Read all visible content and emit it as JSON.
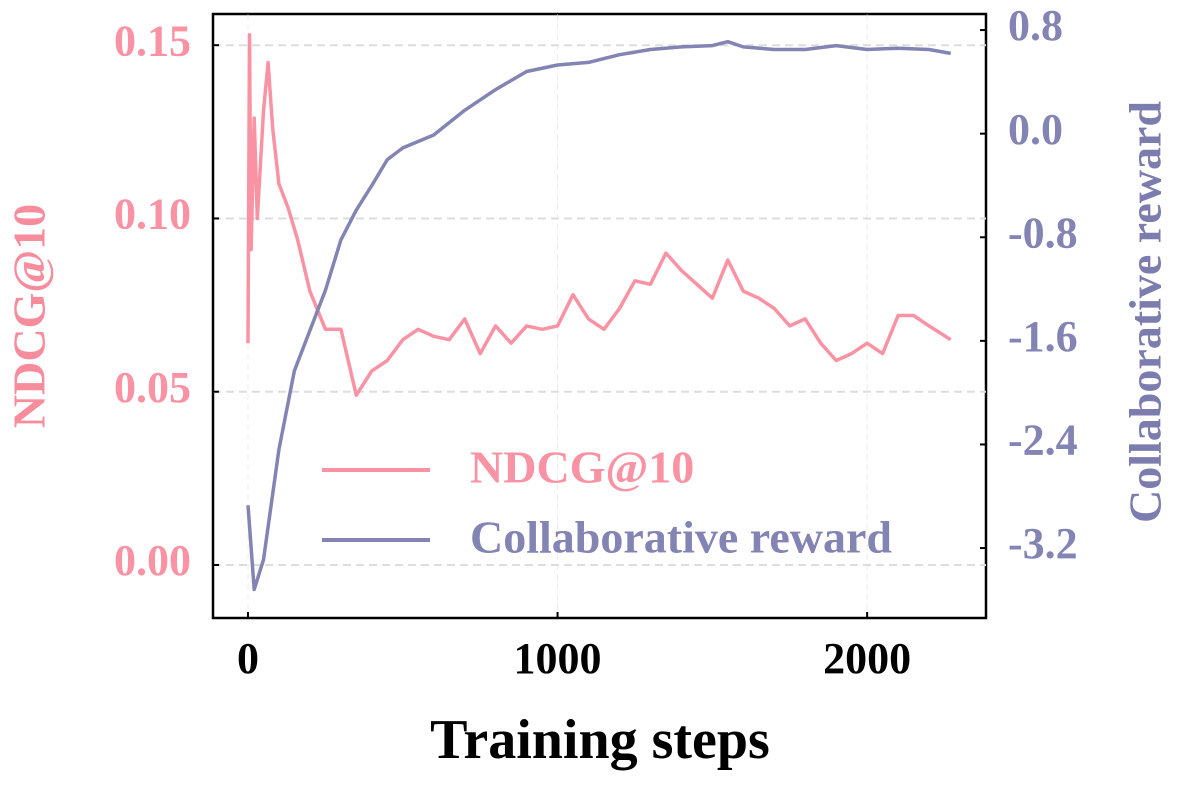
{
  "chart_data": {
    "type": "line",
    "xlabel": "Training steps",
    "ylabel": "NDCG@10",
    "y2label": "Collaborative reward",
    "xlim": [
      -113,
      2384
    ],
    "xticks": [
      0,
      1000,
      2000
    ],
    "ylim": [
      -0.0153,
      0.159
    ],
    "yticks": [
      {
        "value": 0,
        "label": "0.00"
      },
      0.05,
      {
        "value": 0.1,
        "label": "0.10"
      },
      0.15
    ],
    "y2lim": [
      -3.74,
      0.924
    ],
    "y2ticks": [
      -3.2,
      -2.4,
      -1.6,
      -0.8,
      {
        "value": 0,
        "label": "0.0"
      },
      0.8
    ],
    "grid": true,
    "legend": "lower center",
    "series": [
      {
        "name": "NDCG@10",
        "color": "#f993a3",
        "x": [
          0,
          5,
          10,
          20,
          30,
          50,
          65,
          80,
          100,
          130,
          160,
          200,
          250,
          300,
          350,
          400,
          450,
          500,
          550,
          600,
          650,
          700,
          750,
          800,
          850,
          900,
          950,
          1000,
          1050,
          1100,
          1150,
          1200,
          1250,
          1300,
          1350,
          1400,
          1450,
          1500,
          1550,
          1600,
          1650,
          1700,
          1750,
          1800,
          1850,
          1900,
          1950,
          2000,
          2050,
          2100,
          2150,
          2200,
          2270
        ],
        "values": [
          0.064,
          0.153,
          0.091,
          0.129,
          0.1,
          0.131,
          0.145,
          0.126,
          0.11,
          0.103,
          0.094,
          0.079,
          0.068,
          0.068,
          0.049,
          0.056,
          0.059,
          0.065,
          0.068,
          0.066,
          0.065,
          0.071,
          0.061,
          0.069,
          0.064,
          0.069,
          0.068,
          0.069,
          0.078,
          0.071,
          0.068,
          0.074,
          0.082,
          0.081,
          0.09,
          0.085,
          0.081,
          0.077,
          0.088,
          0.079,
          0.077,
          0.074,
          0.069,
          0.071,
          0.064,
          0.059,
          0.061,
          0.064,
          0.061,
          0.072,
          0.072,
          0.069,
          0.065
        ]
      },
      {
        "name": "Collaborative reward",
        "color": "#8384b4",
        "axis": "y2",
        "x": [
          0,
          20,
          50,
          100,
          150,
          200,
          250,
          300,
          350,
          400,
          450,
          500,
          600,
          700,
          800,
          900,
          1000,
          1100,
          1200,
          1300,
          1400,
          1500,
          1550,
          1600,
          1700,
          1800,
          1900,
          2000,
          2100,
          2200,
          2270
        ],
        "values": [
          -2.87,
          -3.52,
          -3.29,
          -2.44,
          -1.83,
          -1.52,
          -1.21,
          -0.82,
          -0.59,
          -0.4,
          -0.2,
          -0.11,
          -0.01,
          0.18,
          0.34,
          0.48,
          0.53,
          0.55,
          0.61,
          0.65,
          0.67,
          0.68,
          0.71,
          0.67,
          0.65,
          0.65,
          0.68,
          0.65,
          0.66,
          0.65,
          0.62
        ]
      }
    ]
  }
}
